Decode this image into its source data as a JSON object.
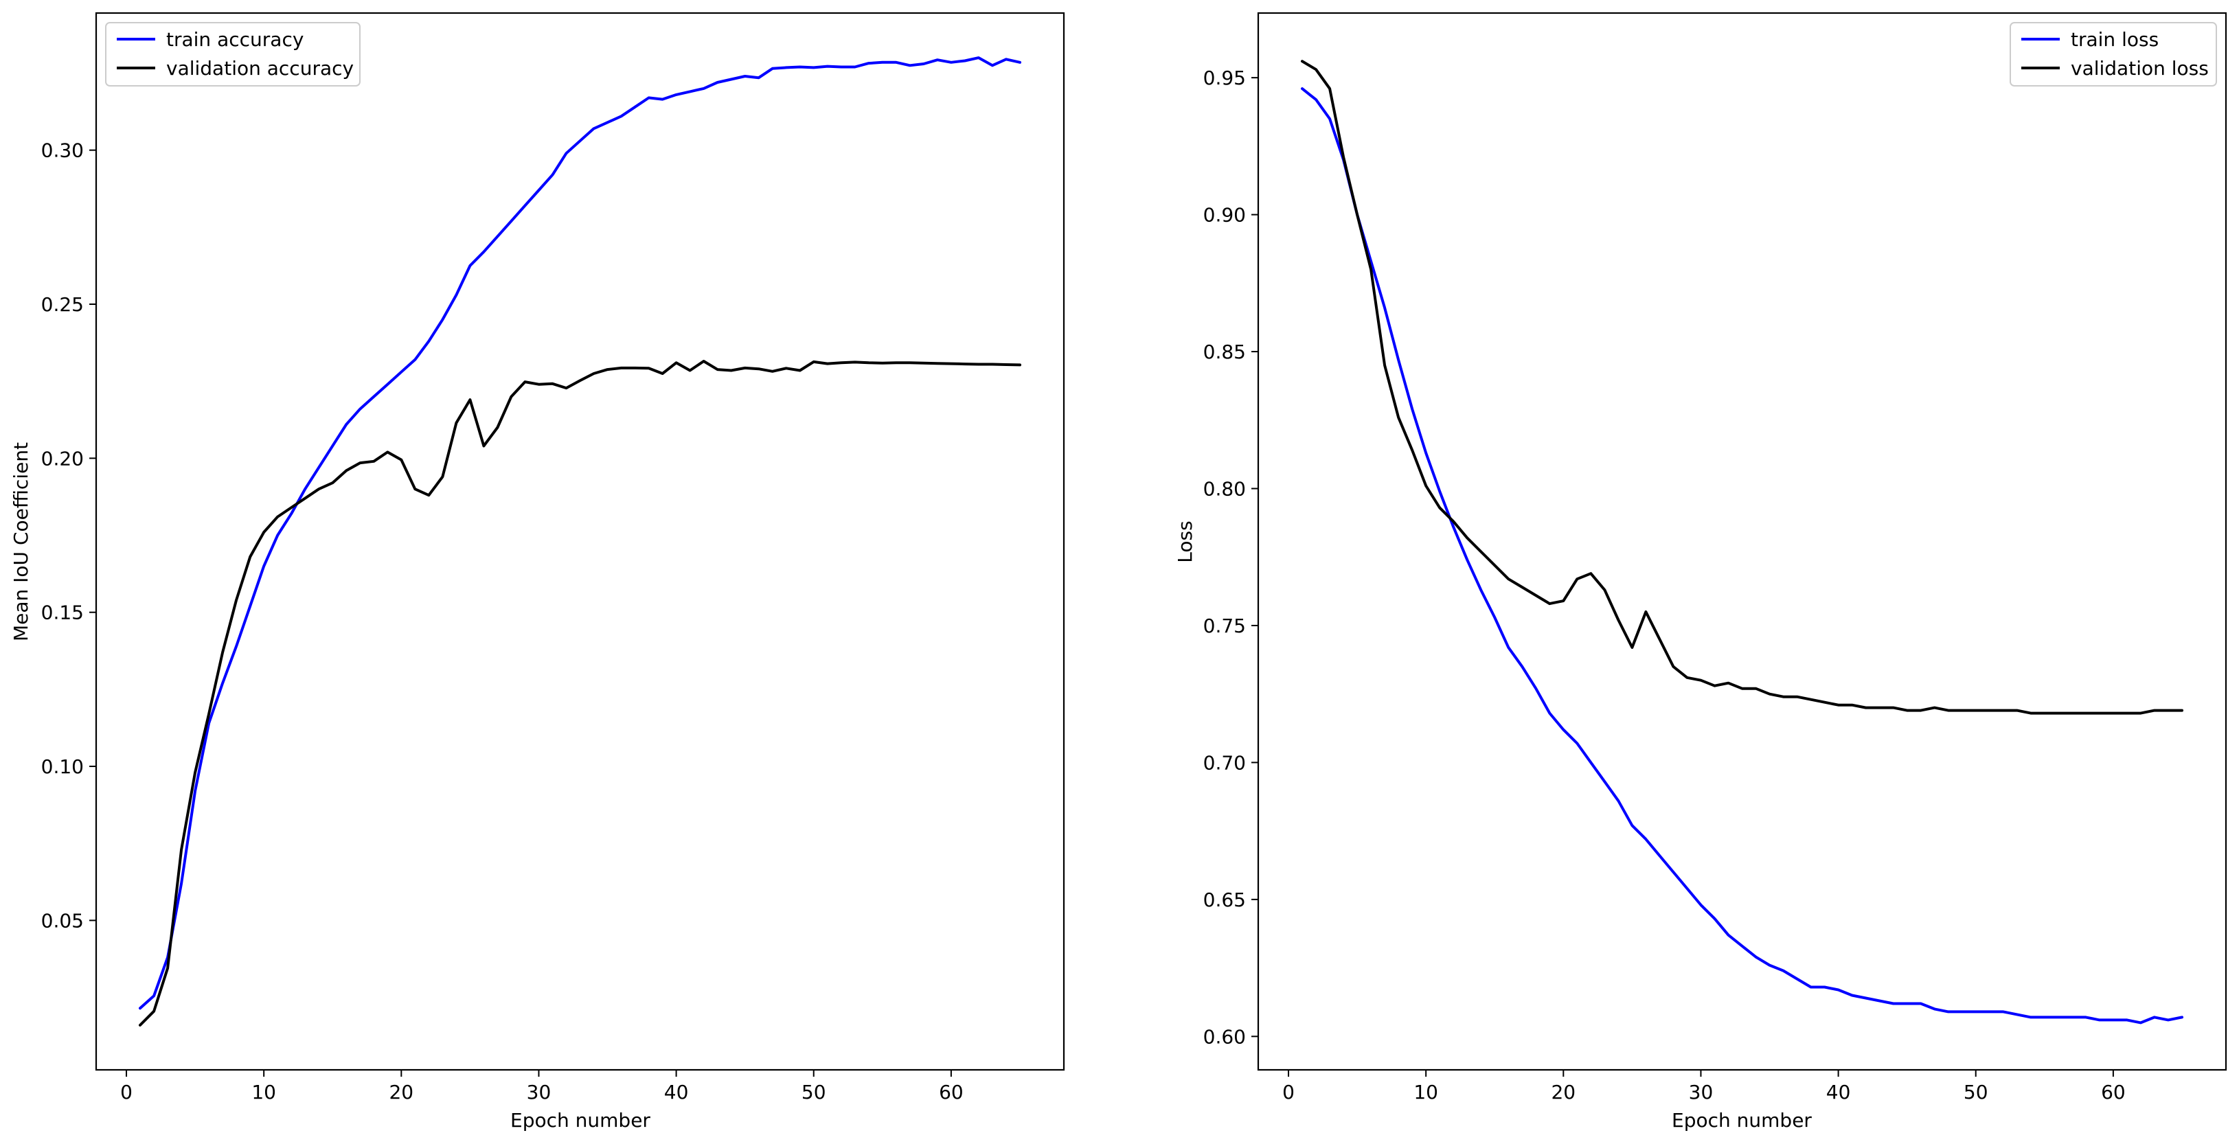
{
  "chart_data": [
    {
      "type": "line",
      "title": "",
      "xlabel": "Epoch number",
      "ylabel": "Mean IoU Coefficient",
      "xlim": [
        -2.2,
        68.2
      ],
      "ylim": [
        0.0015,
        0.3445
      ],
      "xticks": [
        0,
        10,
        20,
        30,
        40,
        50,
        60
      ],
      "yticks": [
        0.05,
        0.1,
        0.15,
        0.2,
        0.25,
        0.3
      ],
      "ytick_labels": [
        "0.05",
        "0.10",
        "0.15",
        "0.20",
        "0.25",
        "0.30"
      ],
      "grid": false,
      "legend_position": "top-left",
      "series": [
        {
          "name": "train accuracy",
          "color": "#0000ff",
          "x": [
            1,
            2,
            3,
            4,
            5,
            6,
            7,
            8,
            9,
            10,
            11,
            12,
            13,
            14,
            15,
            16,
            17,
            18,
            19,
            20,
            21,
            22,
            23,
            24,
            25,
            26,
            27,
            28,
            29,
            30,
            31,
            32,
            33,
            34,
            35,
            36,
            37,
            38,
            39,
            40,
            41,
            42,
            43,
            44,
            45,
            46,
            47,
            48,
            49,
            50,
            51,
            52,
            53,
            54,
            55,
            56,
            57,
            58,
            59,
            60,
            61,
            62,
            63,
            64,
            65
          ],
          "values": [
            0.0215,
            0.0255,
            0.038,
            0.062,
            0.092,
            0.114,
            0.127,
            0.139,
            0.152,
            0.165,
            0.175,
            0.182,
            0.19,
            0.197,
            0.204,
            0.211,
            0.216,
            0.22,
            0.224,
            0.228,
            0.232,
            0.238,
            0.245,
            0.253,
            0.2625,
            0.267,
            0.272,
            0.277,
            0.282,
            0.287,
            0.292,
            0.299,
            0.303,
            0.307,
            0.309,
            0.311,
            0.314,
            0.317,
            0.3165,
            0.318,
            0.319,
            0.32,
            0.322,
            0.323,
            0.324,
            0.3235,
            0.3265,
            0.3268,
            0.327,
            0.3268,
            0.3272,
            0.327,
            0.327,
            0.3282,
            0.3285,
            0.3285,
            0.3275,
            0.328,
            0.3293,
            0.3285,
            0.329,
            0.33,
            0.3275,
            0.3295,
            0.3285
          ]
        },
        {
          "name": "validation accuracy",
          "color": "#000000",
          "x": [
            1,
            2,
            3,
            4,
            5,
            6,
            7,
            8,
            9,
            10,
            11,
            12,
            13,
            14,
            15,
            16,
            17,
            18,
            19,
            20,
            21,
            22,
            23,
            24,
            25,
            26,
            27,
            28,
            29,
            30,
            31,
            32,
            33,
            34,
            35,
            36,
            37,
            38,
            39,
            40,
            41,
            42,
            43,
            44,
            45,
            46,
            47,
            48,
            49,
            50,
            51,
            52,
            53,
            54,
            55,
            56,
            57,
            58,
            59,
            60,
            61,
            62,
            63,
            64,
            65
          ],
          "values": [
            0.016,
            0.0205,
            0.0345,
            0.073,
            0.098,
            0.117,
            0.137,
            0.154,
            0.168,
            0.176,
            0.181,
            0.184,
            0.187,
            0.19,
            0.192,
            0.196,
            0.1985,
            0.199,
            0.202,
            0.1995,
            0.19,
            0.188,
            0.194,
            0.2115,
            0.219,
            0.204,
            0.21,
            0.22,
            0.2248,
            0.224,
            0.2242,
            0.2228,
            0.2252,
            0.2275,
            0.2288,
            0.2293,
            0.2293,
            0.2292,
            0.2275,
            0.231,
            0.2285,
            0.2315,
            0.2288,
            0.2285,
            0.2293,
            0.229,
            0.2282,
            0.2292,
            0.2285,
            0.2313,
            0.2307,
            0.231,
            0.2312,
            0.231,
            0.2309,
            0.231,
            0.231,
            0.2309,
            0.2308,
            0.2307,
            0.2306,
            0.2305,
            0.2305,
            0.2304,
            0.2303
          ]
        }
      ]
    },
    {
      "type": "line",
      "title": "",
      "xlabel": "Epoch number",
      "ylabel": "Loss",
      "xlim": [
        -2.2,
        68.2
      ],
      "ylim": [
        0.5878,
        0.9736
      ],
      "xticks": [
        0,
        10,
        20,
        30,
        40,
        50,
        60
      ],
      "yticks": [
        0.6,
        0.65,
        0.7,
        0.75,
        0.8,
        0.85,
        0.9,
        0.95
      ],
      "ytick_labels": [
        "0.60",
        "0.65",
        "0.70",
        "0.75",
        "0.80",
        "0.85",
        "0.90",
        "0.95"
      ],
      "grid": false,
      "legend_position": "top-right",
      "series": [
        {
          "name": "train loss",
          "color": "#0000ff",
          "x": [
            1,
            2,
            3,
            4,
            5,
            6,
            7,
            8,
            9,
            10,
            11,
            12,
            13,
            14,
            15,
            16,
            17,
            18,
            19,
            20,
            21,
            22,
            23,
            24,
            25,
            26,
            27,
            28,
            29,
            30,
            31,
            32,
            33,
            34,
            35,
            36,
            37,
            38,
            39,
            40,
            41,
            42,
            43,
            44,
            45,
            46,
            47,
            48,
            49,
            50,
            51,
            52,
            53,
            54,
            55,
            56,
            57,
            58,
            59,
            60,
            61,
            62,
            63,
            64,
            65
          ],
          "values": [
            0.946,
            0.942,
            0.935,
            0.92,
            0.9,
            0.883,
            0.866,
            0.847,
            0.829,
            0.813,
            0.799,
            0.786,
            0.774,
            0.763,
            0.753,
            0.742,
            0.735,
            0.727,
            0.718,
            0.712,
            0.707,
            0.7,
            0.693,
            0.686,
            0.677,
            0.672,
            0.666,
            0.66,
            0.654,
            0.648,
            0.643,
            0.637,
            0.633,
            0.629,
            0.626,
            0.624,
            0.621,
            0.618,
            0.618,
            0.617,
            0.615,
            0.614,
            0.613,
            0.612,
            0.612,
            0.612,
            0.61,
            0.609,
            0.609,
            0.609,
            0.609,
            0.609,
            0.608,
            0.607,
            0.607,
            0.607,
            0.607,
            0.607,
            0.606,
            0.606,
            0.606,
            0.605,
            0.607,
            0.606,
            0.607
          ]
        },
        {
          "name": "validation loss",
          "color": "#000000",
          "x": [
            1,
            2,
            3,
            4,
            5,
            6,
            7,
            8,
            9,
            10,
            11,
            12,
            13,
            14,
            15,
            16,
            17,
            18,
            19,
            20,
            21,
            22,
            23,
            24,
            25,
            26,
            27,
            28,
            29,
            30,
            31,
            32,
            33,
            34,
            35,
            36,
            37,
            38,
            39,
            40,
            41,
            42,
            43,
            44,
            45,
            46,
            47,
            48,
            49,
            50,
            51,
            52,
            53,
            54,
            55,
            56,
            57,
            58,
            59,
            60,
            61,
            62,
            63,
            64,
            65
          ],
          "values": [
            0.956,
            0.953,
            0.946,
            0.921,
            0.9,
            0.88,
            0.845,
            0.826,
            0.814,
            0.801,
            0.793,
            0.788,
            0.782,
            0.777,
            0.772,
            0.767,
            0.764,
            0.761,
            0.758,
            0.759,
            0.767,
            0.769,
            0.763,
            0.752,
            0.742,
            0.755,
            0.745,
            0.735,
            0.731,
            0.73,
            0.728,
            0.729,
            0.727,
            0.727,
            0.725,
            0.724,
            0.724,
            0.723,
            0.722,
            0.721,
            0.721,
            0.72,
            0.72,
            0.72,
            0.719,
            0.719,
            0.72,
            0.719,
            0.719,
            0.719,
            0.719,
            0.719,
            0.719,
            0.718,
            0.718,
            0.718,
            0.718,
            0.718,
            0.718,
            0.718,
            0.718,
            0.718,
            0.719,
            0.719,
            0.719
          ]
        }
      ]
    }
  ]
}
